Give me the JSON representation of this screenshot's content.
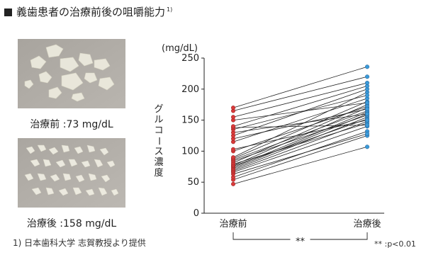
{
  "title": "義歯患者の治療前後の咀嚼能力",
  "title_ref": "1)",
  "photos": {
    "before_caption": "治療前 :73 mg/dL",
    "after_caption": "治療後 :158 mg/dL"
  },
  "source_note": "1) 日本歯科大学 志賀教授より提供",
  "significance_mark": "**",
  "significance_note": "** :p<0.01",
  "colors": {
    "before": "#d93a3a",
    "after": "#3a9ad9",
    "line": "#222222"
  },
  "chart_data": {
    "type": "line",
    "categories": [
      "治療前",
      "治療後"
    ],
    "unit_label": "(mg/dL)",
    "ylabel": "グルコース濃度",
    "ylim": [
      0,
      250
    ],
    "yticks": [
      0,
      50,
      100,
      150,
      200,
      250
    ],
    "pairs": [
      [
        47,
        107
      ],
      [
        54,
        125
      ],
      [
        58,
        132
      ],
      [
        63,
        128
      ],
      [
        66,
        140
      ],
      [
        68,
        148
      ],
      [
        70,
        155
      ],
      [
        72,
        160
      ],
      [
        74,
        163
      ],
      [
        76,
        152
      ],
      [
        77,
        170
      ],
      [
        79,
        145
      ],
      [
        81,
        175
      ],
      [
        84,
        158
      ],
      [
        86,
        165
      ],
      [
        88,
        180
      ],
      [
        90,
        195
      ],
      [
        100,
        172
      ],
      [
        103,
        150
      ],
      [
        115,
        185
      ],
      [
        120,
        168
      ],
      [
        125,
        200
      ],
      [
        130,
        160
      ],
      [
        135,
        190
      ],
      [
        138,
        142
      ],
      [
        140,
        205
      ],
      [
        150,
        178
      ],
      [
        155,
        210
      ],
      [
        165,
        220
      ],
      [
        170,
        236
      ]
    ]
  }
}
